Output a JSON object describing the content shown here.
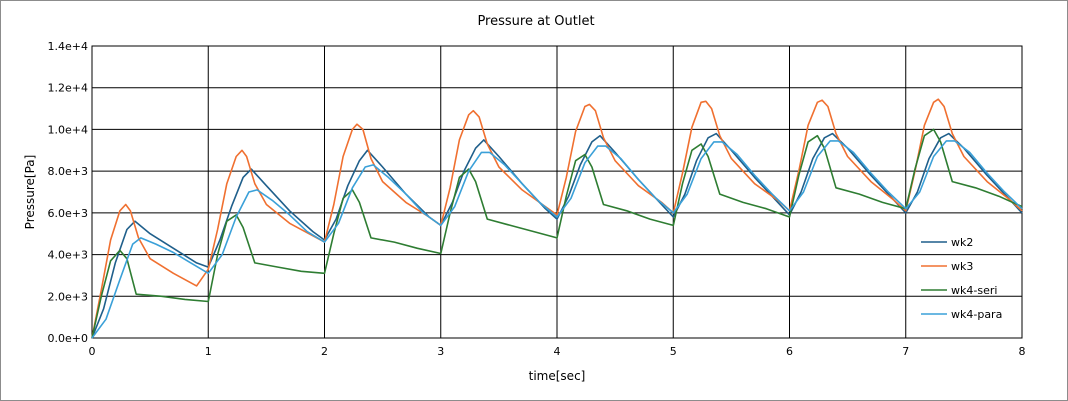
{
  "chart_data": {
    "type": "line",
    "title": "Pressure at Outlet",
    "xlabel": "time[sec]",
    "ylabel": "Pressure[Pa]",
    "xlim": [
      0,
      8
    ],
    "ylim": [
      0,
      14000
    ],
    "grid": true,
    "legend_position": "right",
    "x_ticks": [
      0,
      1,
      2,
      3,
      4,
      5,
      6,
      7,
      8
    ],
    "x_tick_labels": [
      "0",
      "1",
      "2",
      "3",
      "4",
      "5",
      "6",
      "7",
      "8"
    ],
    "y_ticks": [
      0,
      2000,
      4000,
      6000,
      8000,
      10000,
      12000,
      14000
    ],
    "y_tick_labels": [
      "0.0e+0",
      "2.0e+3",
      "4.0e+3",
      "6.0e+3",
      "8.0e+3",
      "1.0e+4",
      "1.2e+4",
      "1.4e+4"
    ],
    "series": [
      {
        "name": "wk2",
        "color": "#1f5f8b",
        "points": [
          [
            0,
            0
          ],
          [
            0.1,
            1400
          ],
          [
            0.2,
            3600
          ],
          [
            0.3,
            5200
          ],
          [
            0.37,
            5600
          ],
          [
            0.5,
            5000
          ],
          [
            0.7,
            4300
          ],
          [
            0.9,
            3600
          ],
          [
            1,
            3400
          ],
          [
            1.1,
            4700
          ],
          [
            1.2,
            6300
          ],
          [
            1.3,
            7700
          ],
          [
            1.37,
            8100
          ],
          [
            1.5,
            7300
          ],
          [
            1.7,
            6100
          ],
          [
            1.9,
            5100
          ],
          [
            2,
            4700
          ],
          [
            2.1,
            5700
          ],
          [
            2.2,
            7300
          ],
          [
            2.3,
            8500
          ],
          [
            2.37,
            9000
          ],
          [
            2.5,
            8200
          ],
          [
            2.7,
            6900
          ],
          [
            2.9,
            5800
          ],
          [
            3,
            5400
          ],
          [
            3.1,
            6500
          ],
          [
            3.2,
            8000
          ],
          [
            3.3,
            9100
          ],
          [
            3.37,
            9500
          ],
          [
            3.5,
            8700
          ],
          [
            3.7,
            7400
          ],
          [
            3.9,
            6200
          ],
          [
            4,
            5700
          ],
          [
            4.1,
            6800
          ],
          [
            4.2,
            8300
          ],
          [
            4.3,
            9400
          ],
          [
            4.37,
            9700
          ],
          [
            4.5,
            8900
          ],
          [
            4.7,
            7600
          ],
          [
            4.9,
            6400
          ],
          [
            5,
            5800
          ],
          [
            5.1,
            6900
          ],
          [
            5.2,
            8500
          ],
          [
            5.3,
            9600
          ],
          [
            5.37,
            9800
          ],
          [
            5.5,
            9000
          ],
          [
            5.7,
            7700
          ],
          [
            5.9,
            6500
          ],
          [
            6,
            5900
          ],
          [
            6.1,
            7000
          ],
          [
            6.2,
            8600
          ],
          [
            6.3,
            9600
          ],
          [
            6.37,
            9800
          ],
          [
            6.5,
            9100
          ],
          [
            6.7,
            7800
          ],
          [
            6.9,
            6600
          ],
          [
            7,
            6000
          ],
          [
            7.1,
            7000
          ],
          [
            7.2,
            8600
          ],
          [
            7.3,
            9600
          ],
          [
            7.37,
            9800
          ],
          [
            7.5,
            9100
          ],
          [
            7.7,
            7800
          ],
          [
            7.9,
            6600
          ],
          [
            8,
            6000
          ]
        ]
      },
      {
        "name": "wk3",
        "color": "#f07030",
        "points": [
          [
            0,
            0
          ],
          [
            0.08,
            2300
          ],
          [
            0.16,
            4700
          ],
          [
            0.24,
            6100
          ],
          [
            0.29,
            6400
          ],
          [
            0.33,
            6100
          ],
          [
            0.4,
            4800
          ],
          [
            0.5,
            3800
          ],
          [
            0.7,
            3100
          ],
          [
            0.9,
            2500
          ],
          [
            1,
            3300
          ],
          [
            1.08,
            5200
          ],
          [
            1.16,
            7400
          ],
          [
            1.24,
            8700
          ],
          [
            1.29,
            9000
          ],
          [
            1.33,
            8700
          ],
          [
            1.4,
            7400
          ],
          [
            1.5,
            6400
          ],
          [
            1.7,
            5500
          ],
          [
            1.9,
            4900
          ],
          [
            2,
            4600
          ],
          [
            2.08,
            6400
          ],
          [
            2.16,
            8700
          ],
          [
            2.24,
            10000
          ],
          [
            2.28,
            10250
          ],
          [
            2.33,
            10000
          ],
          [
            2.4,
            8600
          ],
          [
            2.5,
            7500
          ],
          [
            2.7,
            6500
          ],
          [
            2.9,
            5800
          ],
          [
            3,
            5400
          ],
          [
            3.08,
            7200
          ],
          [
            3.16,
            9500
          ],
          [
            3.24,
            10700
          ],
          [
            3.28,
            10900
          ],
          [
            3.33,
            10600
          ],
          [
            3.4,
            9300
          ],
          [
            3.5,
            8200
          ],
          [
            3.7,
            7100
          ],
          [
            3.9,
            6300
          ],
          [
            4,
            5900
          ],
          [
            4.08,
            7700
          ],
          [
            4.16,
            9900
          ],
          [
            4.24,
            11100
          ],
          [
            4.28,
            11200
          ],
          [
            4.33,
            10900
          ],
          [
            4.4,
            9600
          ],
          [
            4.5,
            8500
          ],
          [
            4.7,
            7300
          ],
          [
            4.9,
            6500
          ],
          [
            5,
            6000
          ],
          [
            5.08,
            7900
          ],
          [
            5.16,
            10100
          ],
          [
            5.24,
            11300
          ],
          [
            5.28,
            11350
          ],
          [
            5.33,
            11000
          ],
          [
            5.4,
            9700
          ],
          [
            5.5,
            8600
          ],
          [
            5.7,
            7400
          ],
          [
            5.9,
            6600
          ],
          [
            6,
            6100
          ],
          [
            6.08,
            8000
          ],
          [
            6.16,
            10200
          ],
          [
            6.24,
            11300
          ],
          [
            6.28,
            11400
          ],
          [
            6.33,
            11100
          ],
          [
            6.4,
            9800
          ],
          [
            6.5,
            8700
          ],
          [
            6.7,
            7500
          ],
          [
            6.9,
            6600
          ],
          [
            7,
            6100
          ],
          [
            7.08,
            8000
          ],
          [
            7.16,
            10200
          ],
          [
            7.24,
            11300
          ],
          [
            7.28,
            11450
          ],
          [
            7.33,
            11100
          ],
          [
            7.4,
            9800
          ],
          [
            7.5,
            8700
          ],
          [
            7.7,
            7500
          ],
          [
            7.9,
            6600
          ],
          [
            8,
            6100
          ]
        ]
      },
      {
        "name": "wk4-seri",
        "color": "#2e7d32",
        "points": [
          [
            0,
            0
          ],
          [
            0.08,
            2000
          ],
          [
            0.16,
            3700
          ],
          [
            0.24,
            4200
          ],
          [
            0.3,
            3800
          ],
          [
            0.38,
            2100
          ],
          [
            0.6,
            2000
          ],
          [
            0.8,
            1850
          ],
          [
            1,
            1750
          ],
          [
            1.08,
            4000
          ],
          [
            1.16,
            5600
          ],
          [
            1.24,
            5900
          ],
          [
            1.3,
            5300
          ],
          [
            1.4,
            3600
          ],
          [
            1.6,
            3400
          ],
          [
            1.8,
            3200
          ],
          [
            2,
            3100
          ],
          [
            2.08,
            5000
          ],
          [
            2.16,
            6700
          ],
          [
            2.24,
            7100
          ],
          [
            2.3,
            6500
          ],
          [
            2.4,
            4800
          ],
          [
            2.6,
            4600
          ],
          [
            2.8,
            4300
          ],
          [
            3,
            4050
          ],
          [
            3.08,
            6000
          ],
          [
            3.16,
            7700
          ],
          [
            3.24,
            8100
          ],
          [
            3.3,
            7500
          ],
          [
            3.4,
            5700
          ],
          [
            3.6,
            5400
          ],
          [
            3.8,
            5100
          ],
          [
            4,
            4800
          ],
          [
            4.08,
            6800
          ],
          [
            4.16,
            8500
          ],
          [
            4.24,
            8800
          ],
          [
            4.3,
            8200
          ],
          [
            4.4,
            6400
          ],
          [
            4.6,
            6100
          ],
          [
            4.8,
            5700
          ],
          [
            5,
            5400
          ],
          [
            5.08,
            7400
          ],
          [
            5.16,
            9000
          ],
          [
            5.24,
            9300
          ],
          [
            5.3,
            8700
          ],
          [
            5.4,
            6900
          ],
          [
            5.6,
            6500
          ],
          [
            5.8,
            6200
          ],
          [
            6,
            5800
          ],
          [
            6.08,
            7800
          ],
          [
            6.16,
            9400
          ],
          [
            6.24,
            9700
          ],
          [
            6.3,
            9100
          ],
          [
            6.4,
            7200
          ],
          [
            6.6,
            6900
          ],
          [
            6.8,
            6500
          ],
          [
            7,
            6200
          ],
          [
            7.08,
            8100
          ],
          [
            7.16,
            9700
          ],
          [
            7.24,
            10000
          ],
          [
            7.3,
            9400
          ],
          [
            7.4,
            7500
          ],
          [
            7.6,
            7200
          ],
          [
            7.8,
            6800
          ],
          [
            8,
            6300
          ]
        ]
      },
      {
        "name": "wk4-para",
        "color": "#3aa0d8",
        "points": [
          [
            0,
            0
          ],
          [
            0.12,
            900
          ],
          [
            0.24,
            2800
          ],
          [
            0.35,
            4500
          ],
          [
            0.42,
            4800
          ],
          [
            0.55,
            4500
          ],
          [
            0.7,
            4100
          ],
          [
            0.85,
            3600
          ],
          [
            1,
            3100
          ],
          [
            1.12,
            4000
          ],
          [
            1.24,
            5800
          ],
          [
            1.35,
            7000
          ],
          [
            1.42,
            7100
          ],
          [
            1.55,
            6600
          ],
          [
            1.7,
            5900
          ],
          [
            1.85,
            5100
          ],
          [
            2,
            4600
          ],
          [
            2.12,
            5500
          ],
          [
            2.24,
            7200
          ],
          [
            2.35,
            8200
          ],
          [
            2.42,
            8300
          ],
          [
            2.55,
            7700
          ],
          [
            2.7,
            6900
          ],
          [
            2.85,
            6000
          ],
          [
            3,
            5400
          ],
          [
            3.12,
            6300
          ],
          [
            3.24,
            8000
          ],
          [
            3.35,
            8900
          ],
          [
            3.42,
            8900
          ],
          [
            3.55,
            8300
          ],
          [
            3.7,
            7400
          ],
          [
            3.85,
            6500
          ],
          [
            4,
            5800
          ],
          [
            4.12,
            6700
          ],
          [
            4.24,
            8400
          ],
          [
            4.35,
            9200
          ],
          [
            4.42,
            9200
          ],
          [
            4.55,
            8600
          ],
          [
            4.7,
            7600
          ],
          [
            4.85,
            6700
          ],
          [
            5,
            6000
          ],
          [
            5.12,
            6900
          ],
          [
            5.24,
            8600
          ],
          [
            5.35,
            9400
          ],
          [
            5.42,
            9400
          ],
          [
            5.55,
            8800
          ],
          [
            5.7,
            7800
          ],
          [
            5.85,
            6900
          ],
          [
            6,
            6100
          ],
          [
            6.12,
            7000
          ],
          [
            6.24,
            8700
          ],
          [
            6.35,
            9450
          ],
          [
            6.42,
            9450
          ],
          [
            6.55,
            8900
          ],
          [
            6.7,
            7900
          ],
          [
            6.85,
            7000
          ],
          [
            7,
            6200
          ],
          [
            7.12,
            7000
          ],
          [
            7.24,
            8700
          ],
          [
            7.35,
            9450
          ],
          [
            7.42,
            9450
          ],
          [
            7.55,
            8900
          ],
          [
            7.7,
            7900
          ],
          [
            7.85,
            7000
          ],
          [
            8,
            6200
          ]
        ]
      }
    ]
  }
}
